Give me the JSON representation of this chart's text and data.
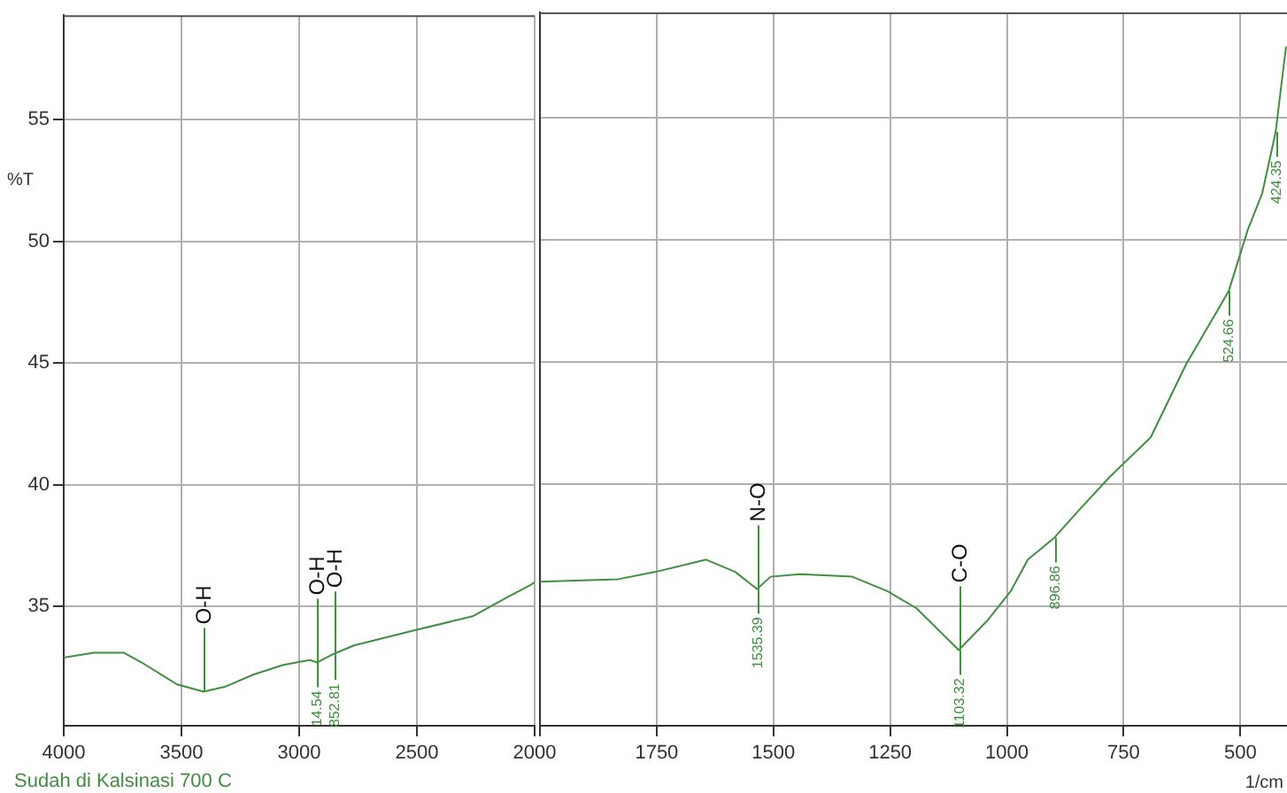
{
  "chart_data": [
    {
      "type": "line",
      "ylabel": "%T",
      "legend": "bottom left",
      "grid": true,
      "marker": "none",
      "line_style": "solid",
      "xlim": [
        4000,
        2000
      ],
      "xticks": [
        4000,
        3500,
        3000,
        2500,
        2000
      ],
      "ylim": [
        30.1,
        59.3
      ],
      "yticks": [
        35,
        40,
        45,
        50,
        55
      ],
      "series": [
        {
          "name": "Sudah di Kalsinasi 700 C",
          "color": "#3f8f3f",
          "x": [
            4000,
            3872,
            3744,
            3669,
            3519,
            3406,
            3316,
            3195,
            3067,
            2955,
            2924,
            2865,
            2767,
            2519,
            2263,
            2113,
            2015,
            2000
          ],
          "values": [
            32.9,
            33.1,
            33.1,
            32.7,
            31.8,
            31.5,
            31.7,
            32.2,
            32.6,
            32.8,
            32.7,
            33.0,
            33.4,
            34.0,
            34.6,
            35.4,
            35.9,
            36.0
          ]
        }
      ],
      "annotations": [
        {
          "text": "O-H",
          "x": 3406,
          "y": 31.5
        },
        {
          "text": "O-H",
          "x": 2924,
          "y": 32.7
        },
        {
          "text": "O-H",
          "x": 2852,
          "y": 33.0
        },
        {
          "text": "14.54",
          "x": 2924,
          "y": 32.7
        },
        {
          "text": "852.81",
          "x": 2852,
          "y": 33.0
        }
      ]
    },
    {
      "type": "line",
      "xlabel": "1/cm",
      "grid": true,
      "marker": "none",
      "line_style": "solid",
      "tick_labels": "x",
      "xlim": [
        2000,
        400
      ],
      "xticks": [
        {
          "value": 2000,
          "label": null
        },
        1750,
        1500,
        1250,
        1000,
        750,
        500
      ],
      "ylim": [
        30.1,
        59.3
      ],
      "yticks": [
        35,
        40,
        45,
        50,
        55
      ],
      "series": [
        {
          "color": "#3f8f3f",
          "x": [
            2000,
            1832,
            1752,
            1644,
            1582,
            1535,
            1506,
            1443,
            1331,
            1255,
            1193,
            1103,
            1042,
            992,
            955,
            898,
            842,
            779,
            692,
            616,
            524.66,
            484,
            453,
            424.35,
            402
          ],
          "values": [
            36.0,
            36.1,
            36.4,
            36.9,
            36.4,
            35.7,
            36.2,
            36.3,
            36.2,
            35.6,
            34.9,
            33.2,
            34.4,
            35.6,
            36.9,
            37.8,
            39.0,
            40.3,
            41.9,
            44.9,
            47.9,
            50.4,
            51.9,
            54.4,
            57.9
          ]
        }
      ],
      "annotations": [
        {
          "text": "N-O",
          "x": 1535,
          "y": 35.7
        },
        {
          "text": "C-O",
          "x": 1103,
          "y": 33.2
        },
        {
          "text": "1535.39",
          "x": 1535,
          "y": 35.7
        },
        {
          "text": "1103.32",
          "x": 1103,
          "y": 33.2
        },
        {
          "text": "896.86",
          "x": 898,
          "y": 37.8
        },
        {
          "text": "524.66",
          "x": 524.66,
          "y": 47.9
        },
        {
          "text": "424.35",
          "x": 424.35,
          "y": 54.4
        }
      ]
    }
  ]
}
